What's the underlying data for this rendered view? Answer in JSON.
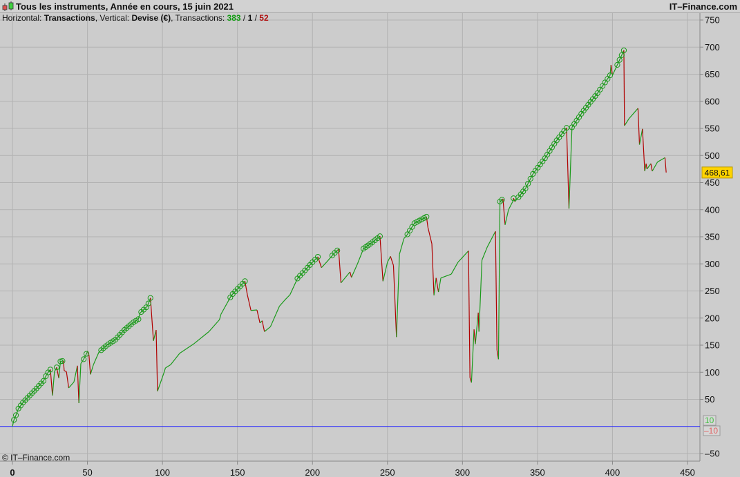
{
  "header": {
    "title": "Tous les instruments, Année en cours, 15 juin 2021",
    "brand": "IT–Finance.com",
    "horizontal_label": "Horizontal:",
    "horizontal_value": "Transactions",
    "vertical_label": ", Vertical:",
    "vertical_value": "Devise (€)",
    "transactions_label": ", Transactions:",
    "transactions_won": "383",
    "sep1": " / ",
    "transactions_neutral": "1",
    "sep2": " / ",
    "transactions_lost": "52"
  },
  "footer": {
    "copyright": "© IT–Finance.com"
  },
  "colors": {
    "up": "#1a9a1a",
    "down": "#b00000",
    "zero_line": "#2020ff",
    "price_tag": "#ffd400",
    "marker": "#1a9a1a"
  },
  "chart_data": {
    "type": "line",
    "xlim": [
      0,
      450
    ],
    "ylim": [
      -60,
      760
    ],
    "grid": true,
    "x_ticks": [
      "0",
      "50",
      "100",
      "150",
      "200",
      "250",
      "300",
      "350",
      "400",
      "450"
    ],
    "y_ticks": [
      "-50",
      "50",
      "100",
      "150",
      "200",
      "250",
      "300",
      "350",
      "400",
      "450",
      "500",
      "550",
      "600",
      "650",
      "700",
      "750"
    ],
    "last_value_label": "468,61",
    "zero_labels": {
      "upper": "10",
      "lower": "-10"
    },
    "markers": "new-high circles",
    "series": [
      {
        "x": [
          0,
          1,
          3,
          4,
          7,
          11.5,
          16,
          20.7,
          23,
          25.3,
          26.7,
          28,
          29.5,
          30.9,
          32,
          34,
          34.5,
          36,
          37.5,
          41,
          43.3,
          44.3,
          45.6,
          47.5,
          50.2,
          51,
          52,
          54,
          57.6,
          63,
          68.6,
          74.6,
          80.6,
          84,
          85,
          90,
          92,
          94,
          95.8,
          96.7,
          101,
          102,
          105.5,
          111.5,
          120.7,
          131,
          138,
          139,
          146,
          155,
          156.6,
          159,
          163,
          165,
          166.5,
          168,
          172,
          178,
          181.5,
          185,
          190,
          195,
          200,
          203.6,
          206,
          210,
          214,
          217.4,
          219,
          225,
          226,
          230,
          234,
          240,
          245,
          247,
          250,
          252,
          254,
          256,
          258,
          261,
          262.5,
          268,
          276,
          277,
          279.6,
          281,
          282.4,
          284,
          285.6,
          292.5,
          297,
          304,
          305,
          306,
          307.7,
          308.6,
          310.5,
          311,
          313,
          316.5,
          322,
          323,
          324,
          325,
          327,
          328.4,
          330.7,
          333.5,
          334,
          335,
          342,
          347,
          355,
          362,
          369.4,
          371,
          373,
          380,
          390,
          398.4,
          399,
          400,
          404,
          407.6,
          408,
          411,
          417,
          418,
          420,
          421.5,
          422.4,
          423,
          425.6,
          426.5,
          430,
          435,
          435.8
        ],
        "y": [
          0,
          12,
          25,
          33,
          44,
          57,
          70,
          84,
          97,
          105,
          57,
          101,
          109,
          89,
          120,
          121,
          103,
          101,
          71,
          82,
          112,
          43,
          116,
          124,
          139,
          132,
          96,
          114,
          137,
          150,
          160,
          178,
          192,
          198,
          209,
          222,
          237,
          158,
          178,
          65,
          99,
          108,
          114,
          135,
          152,
          175,
          197,
          207,
          242,
          268,
          243,
          214,
          215,
          191,
          195,
          175,
          184,
          222,
          233,
          243,
          273,
          288,
          303,
          313,
          293,
          305,
          318,
          327,
          265,
          285,
          275,
          300,
          328,
          340,
          351,
          268,
          303,
          314,
          297,
          165,
          318,
          347,
          351,
          375,
          387,
          367,
          337,
          242,
          274,
          248,
          274,
          281,
          303,
          324,
          90,
          81,
          179,
          152,
          210,
          175,
          307,
          331,
          360,
          141,
          124,
          415,
          420,
          372,
          400,
          415,
          421,
          415,
          439,
          466,
          495,
          525,
          551,
          402,
          552,
          580,
          615,
          648,
          667,
          648,
          672,
          694,
          555,
          568,
          587,
          520,
          549,
          471,
          485,
          475,
          485,
          471,
          488,
          496,
          468.61
        ]
      }
    ]
  }
}
